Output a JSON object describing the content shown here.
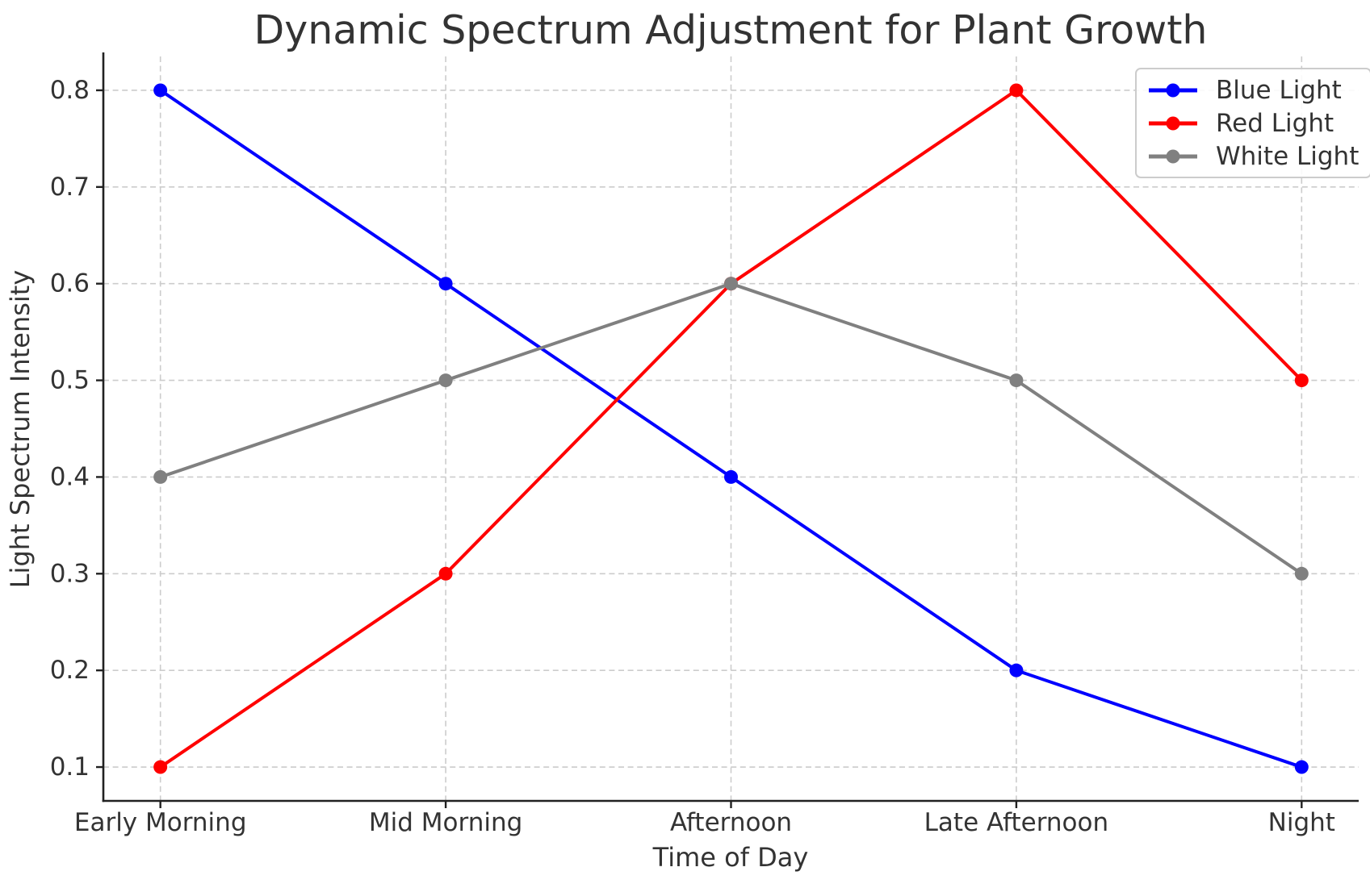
{
  "chart_data": {
    "type": "line",
    "title": "Dynamic Spectrum Adjustment for Plant Growth",
    "xlabel": "Time of Day",
    "ylabel": "Light Spectrum Intensity",
    "categories": [
      "Early Morning",
      "Mid Morning",
      "Afternoon",
      "Late Afternoon",
      "Night"
    ],
    "series": [
      {
        "name": "Blue Light",
        "color": "#0000ff",
        "values": [
          0.8,
          0.6,
          0.4,
          0.2,
          0.1
        ]
      },
      {
        "name": "Red Light",
        "color": "#ff0000",
        "values": [
          0.1,
          0.3,
          0.6,
          0.8,
          0.5
        ]
      },
      {
        "name": "White Light",
        "color": "#808080",
        "values": [
          0.4,
          0.5,
          0.6,
          0.5,
          0.3
        ]
      }
    ],
    "y_ticks": [
      "0.1",
      "0.2",
      "0.3",
      "0.4",
      "0.5",
      "0.6",
      "0.7",
      "0.8"
    ],
    "ylim": [
      0.065,
      0.835
    ],
    "xlim": [
      -0.2,
      4.2
    ],
    "grid": true,
    "grid_style": "dashed",
    "grid_color": "#cccccc",
    "legend_position": "upper right",
    "marker": "circle"
  }
}
